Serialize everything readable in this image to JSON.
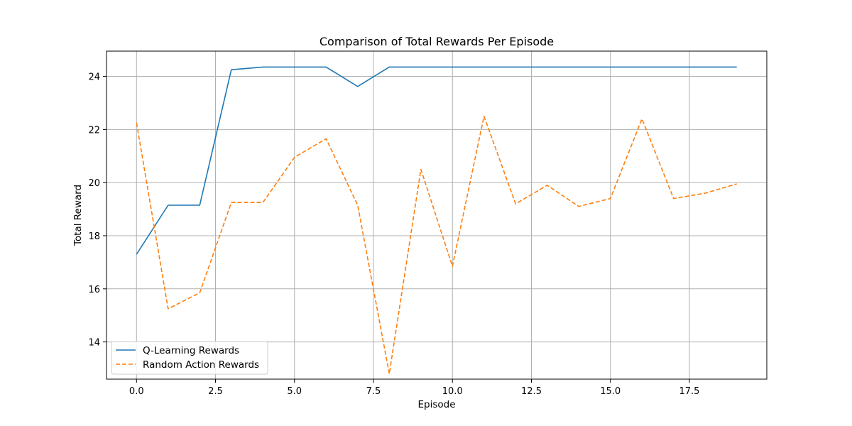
{
  "chart_data": {
    "type": "line",
    "title": "Comparison of Total Rewards Per Episode",
    "xlabel": "Episode",
    "ylabel": "Total Reward",
    "xlim": [
      -0.95,
      19.95
    ],
    "ylim": [
      12.6,
      24.95
    ],
    "xticks": [
      "0.0",
      "2.5",
      "5.0",
      "7.5",
      "10.0",
      "12.5",
      "15.0",
      "17.5"
    ],
    "xtick_values": [
      0,
      2.5,
      5,
      7.5,
      10,
      12.5,
      15,
      17.5
    ],
    "yticks": [
      "14",
      "16",
      "18",
      "20",
      "22",
      "24"
    ],
    "ytick_values": [
      14,
      16,
      18,
      20,
      22,
      24
    ],
    "grid": true,
    "legend_position": "lower-left",
    "x": [
      0,
      1,
      2,
      3,
      4,
      5,
      6,
      7,
      8,
      9,
      10,
      11,
      12,
      13,
      14,
      15,
      16,
      17,
      18,
      19
    ],
    "series": [
      {
        "name": "Q-Learning Rewards",
        "color": "#1f77b4",
        "style": "solid",
        "values": [
          17.3,
          19.15,
          19.15,
          24.25,
          24.35,
          24.35,
          24.35,
          23.62,
          24.35,
          24.35,
          24.35,
          24.35,
          24.35,
          24.35,
          24.35,
          24.35,
          24.35,
          24.35,
          24.35,
          24.35
        ]
      },
      {
        "name": "Random Action Rewards",
        "color": "#ff7f0e",
        "style": "dashed",
        "values": [
          22.25,
          15.25,
          15.85,
          19.25,
          19.25,
          20.95,
          21.65,
          19.15,
          12.8,
          20.5,
          16.85,
          22.5,
          19.2,
          19.9,
          19.1,
          19.4,
          22.4,
          19.4,
          19.6,
          19.95
        ]
      }
    ]
  }
}
